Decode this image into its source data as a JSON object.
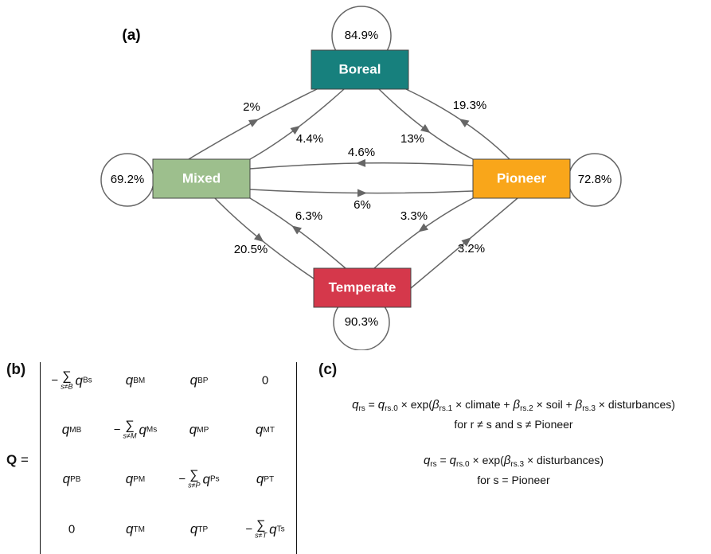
{
  "panel_a": {
    "label": "(a)",
    "nodes": [
      {
        "label": "Boreal",
        "color": "#17807d",
        "self_loop": "84.9%"
      },
      {
        "label": "Mixed",
        "color": "#9dbf8d",
        "self_loop": "69.2%"
      },
      {
        "label": "Pioneer",
        "color": "#f9a61a",
        "self_loop": "72.8%"
      },
      {
        "label": "Temperate",
        "color": "#d5384b",
        "self_loop": "90.3%"
      }
    ],
    "edges": [
      {
        "label": "2%"
      },
      {
        "label": "4.4%"
      },
      {
        "label": "19.3%"
      },
      {
        "label": "13%"
      },
      {
        "label": "4.6%"
      },
      {
        "label": "6%"
      },
      {
        "label": "6.3%"
      },
      {
        "label": "20.5%"
      },
      {
        "label": "3.3%"
      },
      {
        "label": "3.2%"
      }
    ]
  },
  "panel_b": {
    "label": "(b)",
    "matrix_name": "Q",
    "equals": "=",
    "rows": [
      [
        {
          "minus": "−",
          "sum": "∑",
          "under": "s≠B",
          "q": "q",
          "sub": "Bs"
        },
        {
          "q": "q",
          "sub": "BM"
        },
        {
          "q": "q",
          "sub": "BP"
        },
        "0"
      ],
      [
        {
          "q": "q",
          "sub": "MB"
        },
        {
          "minus": "−",
          "sum": "∑",
          "under": "s≠M",
          "q": "q",
          "sub": "Ms"
        },
        {
          "q": "q",
          "sub": "MP"
        },
        {
          "q": "q",
          "sub": "MT"
        }
      ],
      [
        {
          "q": "q",
          "sub": "PB"
        },
        {
          "q": "q",
          "sub": "PM"
        },
        {
          "minus": "−",
          "sum": "∑",
          "under": "s≠P",
          "q": "q",
          "sub": "Ps"
        },
        {
          "q": "q",
          "sub": "PT"
        }
      ],
      [
        "0",
        {
          "q": "q",
          "sub": "TM"
        },
        {
          "q": "q",
          "sub": "TP"
        },
        {
          "minus": "−",
          "sum": "∑",
          "under": "s≠T",
          "q": "q",
          "sub": "Ts"
        }
      ]
    ]
  },
  "panel_c": {
    "label": "(c)",
    "lines": [
      [
        {
          "base": "q",
          "sub": "rs"
        },
        " = ",
        {
          "base": "q",
          "sub": "rs.0"
        },
        " × exp(",
        {
          "base": "β",
          "sub": "rs.1"
        },
        " × climate + ",
        {
          "base": "β",
          "sub": "rs.2"
        },
        " × soil + ",
        {
          "base": "β",
          "sub": "rs.3"
        },
        " × disturbances)"
      ],
      [
        "for r ≠ s and s ≠ Pioneer"
      ],
      [
        {
          "base": "q",
          "sub": "rs"
        },
        " = ",
        {
          "base": "q",
          "sub": "rs.0"
        },
        " × exp(",
        {
          "base": "β",
          "sub": "rs.3"
        },
        " × disturbances)"
      ],
      [
        "for s = Pioneer"
      ]
    ]
  }
}
